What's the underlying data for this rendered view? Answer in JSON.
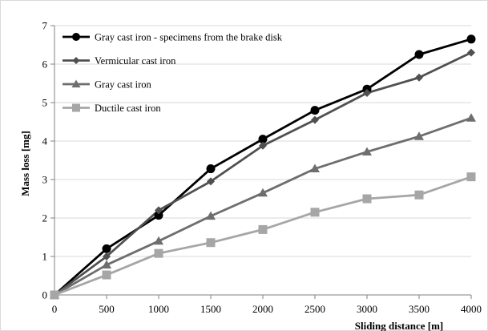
{
  "chart_data": {
    "type": "line",
    "xlabel": "Sliding distance [m]",
    "ylabel": "Mass loss [mg]",
    "xlim": [
      0,
      4000
    ],
    "ylim": [
      0,
      7
    ],
    "x_ticks": [
      0,
      500,
      1000,
      1500,
      2000,
      2500,
      3000,
      3500,
      4000
    ],
    "y_ticks": [
      0,
      1,
      2,
      3,
      4,
      5,
      6,
      7
    ],
    "grid": "horizontal",
    "legend_position": "top-left",
    "x": [
      0,
      500,
      1000,
      1500,
      2000,
      2500,
      3000,
      3500,
      4000
    ],
    "series": [
      {
        "name": "Gray cast iron - specimens from the brake disk",
        "marker": "circle",
        "color": "#000000",
        "values": [
          0,
          1.2,
          2.07,
          3.28,
          4.05,
          4.8,
          5.35,
          6.25,
          6.65
        ]
      },
      {
        "name": "Vermicular cast iron",
        "marker": "diamond",
        "color": "#505050",
        "values": [
          0,
          1.0,
          2.2,
          2.95,
          3.88,
          4.55,
          5.25,
          5.65,
          6.3
        ]
      },
      {
        "name": "Gray cast iron",
        "marker": "triangle",
        "color": "#6e6e6e",
        "values": [
          0,
          0.78,
          1.4,
          2.05,
          2.65,
          3.28,
          3.72,
          4.12,
          4.6
        ]
      },
      {
        "name": "Ductile cast iron",
        "marker": "square",
        "color": "#a6a6a6",
        "values": [
          0,
          0.52,
          1.08,
          1.36,
          1.7,
          2.15,
          2.5,
          2.6,
          3.07
        ]
      }
    ]
  }
}
